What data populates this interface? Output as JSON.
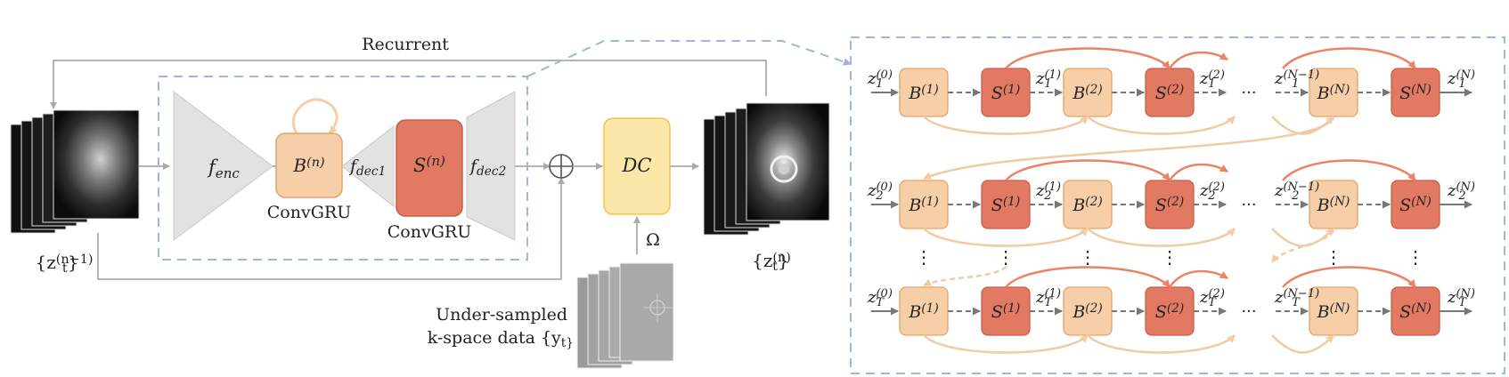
{
  "left": {
    "recurrent_label": "Recurrent",
    "input_label": "{z_t^(n−1)}",
    "output_label": "{z_t^(n)}",
    "f_enc": "f_enc",
    "f_dec1": "f_dec1",
    "f_dec2": "f_dec2",
    "b_block": "B^(n)",
    "s_block": "S^(n)",
    "convgru_1": "ConvGRU",
    "convgru_2": "ConvGRU",
    "dc": "DC",
    "omega": "Ω",
    "kspace_line1": "Under-sampled",
    "kspace_line2": "k-space data {y_t}"
  },
  "right": {
    "rows": [
      {
        "sub": "1",
        "labels": [
          "z_1^(0)",
          "z_1^(1)",
          "z_1^(2)",
          "z_1^(N−1)",
          "z_1^(N)"
        ]
      },
      {
        "sub": "2",
        "labels": [
          "z_2^(0)",
          "z_2^(1)",
          "z_2^(2)",
          "z_2^(N−1)",
          "z_2^(N)"
        ]
      },
      {
        "sub": "T",
        "labels": [
          "z_T^(0)",
          "z_T^(1)",
          "z_T^(2)",
          "z_T^(N−1)",
          "z_T^(N)"
        ]
      }
    ],
    "blocks": [
      "B^(1)",
      "S^(1)",
      "B^(2)",
      "S^(2)",
      "B^(N)",
      "S^(N)"
    ],
    "ellipsis": "···",
    "vdots": "⋮"
  },
  "colors": {
    "b_fill": "#f6cfa9",
    "b_stroke": "#e3a36a",
    "s_fill": "#e27a63",
    "s_stroke": "#c95e48",
    "dc_fill": "#fbe7a8",
    "dc_stroke": "#f1c54a",
    "trap_fill": "#e2e2e2",
    "dash_blue": "#9fb6de",
    "red_arrow": "#e98467",
    "beige_arrow": "#f2caa4",
    "gray_line": "#b4b4b4"
  }
}
